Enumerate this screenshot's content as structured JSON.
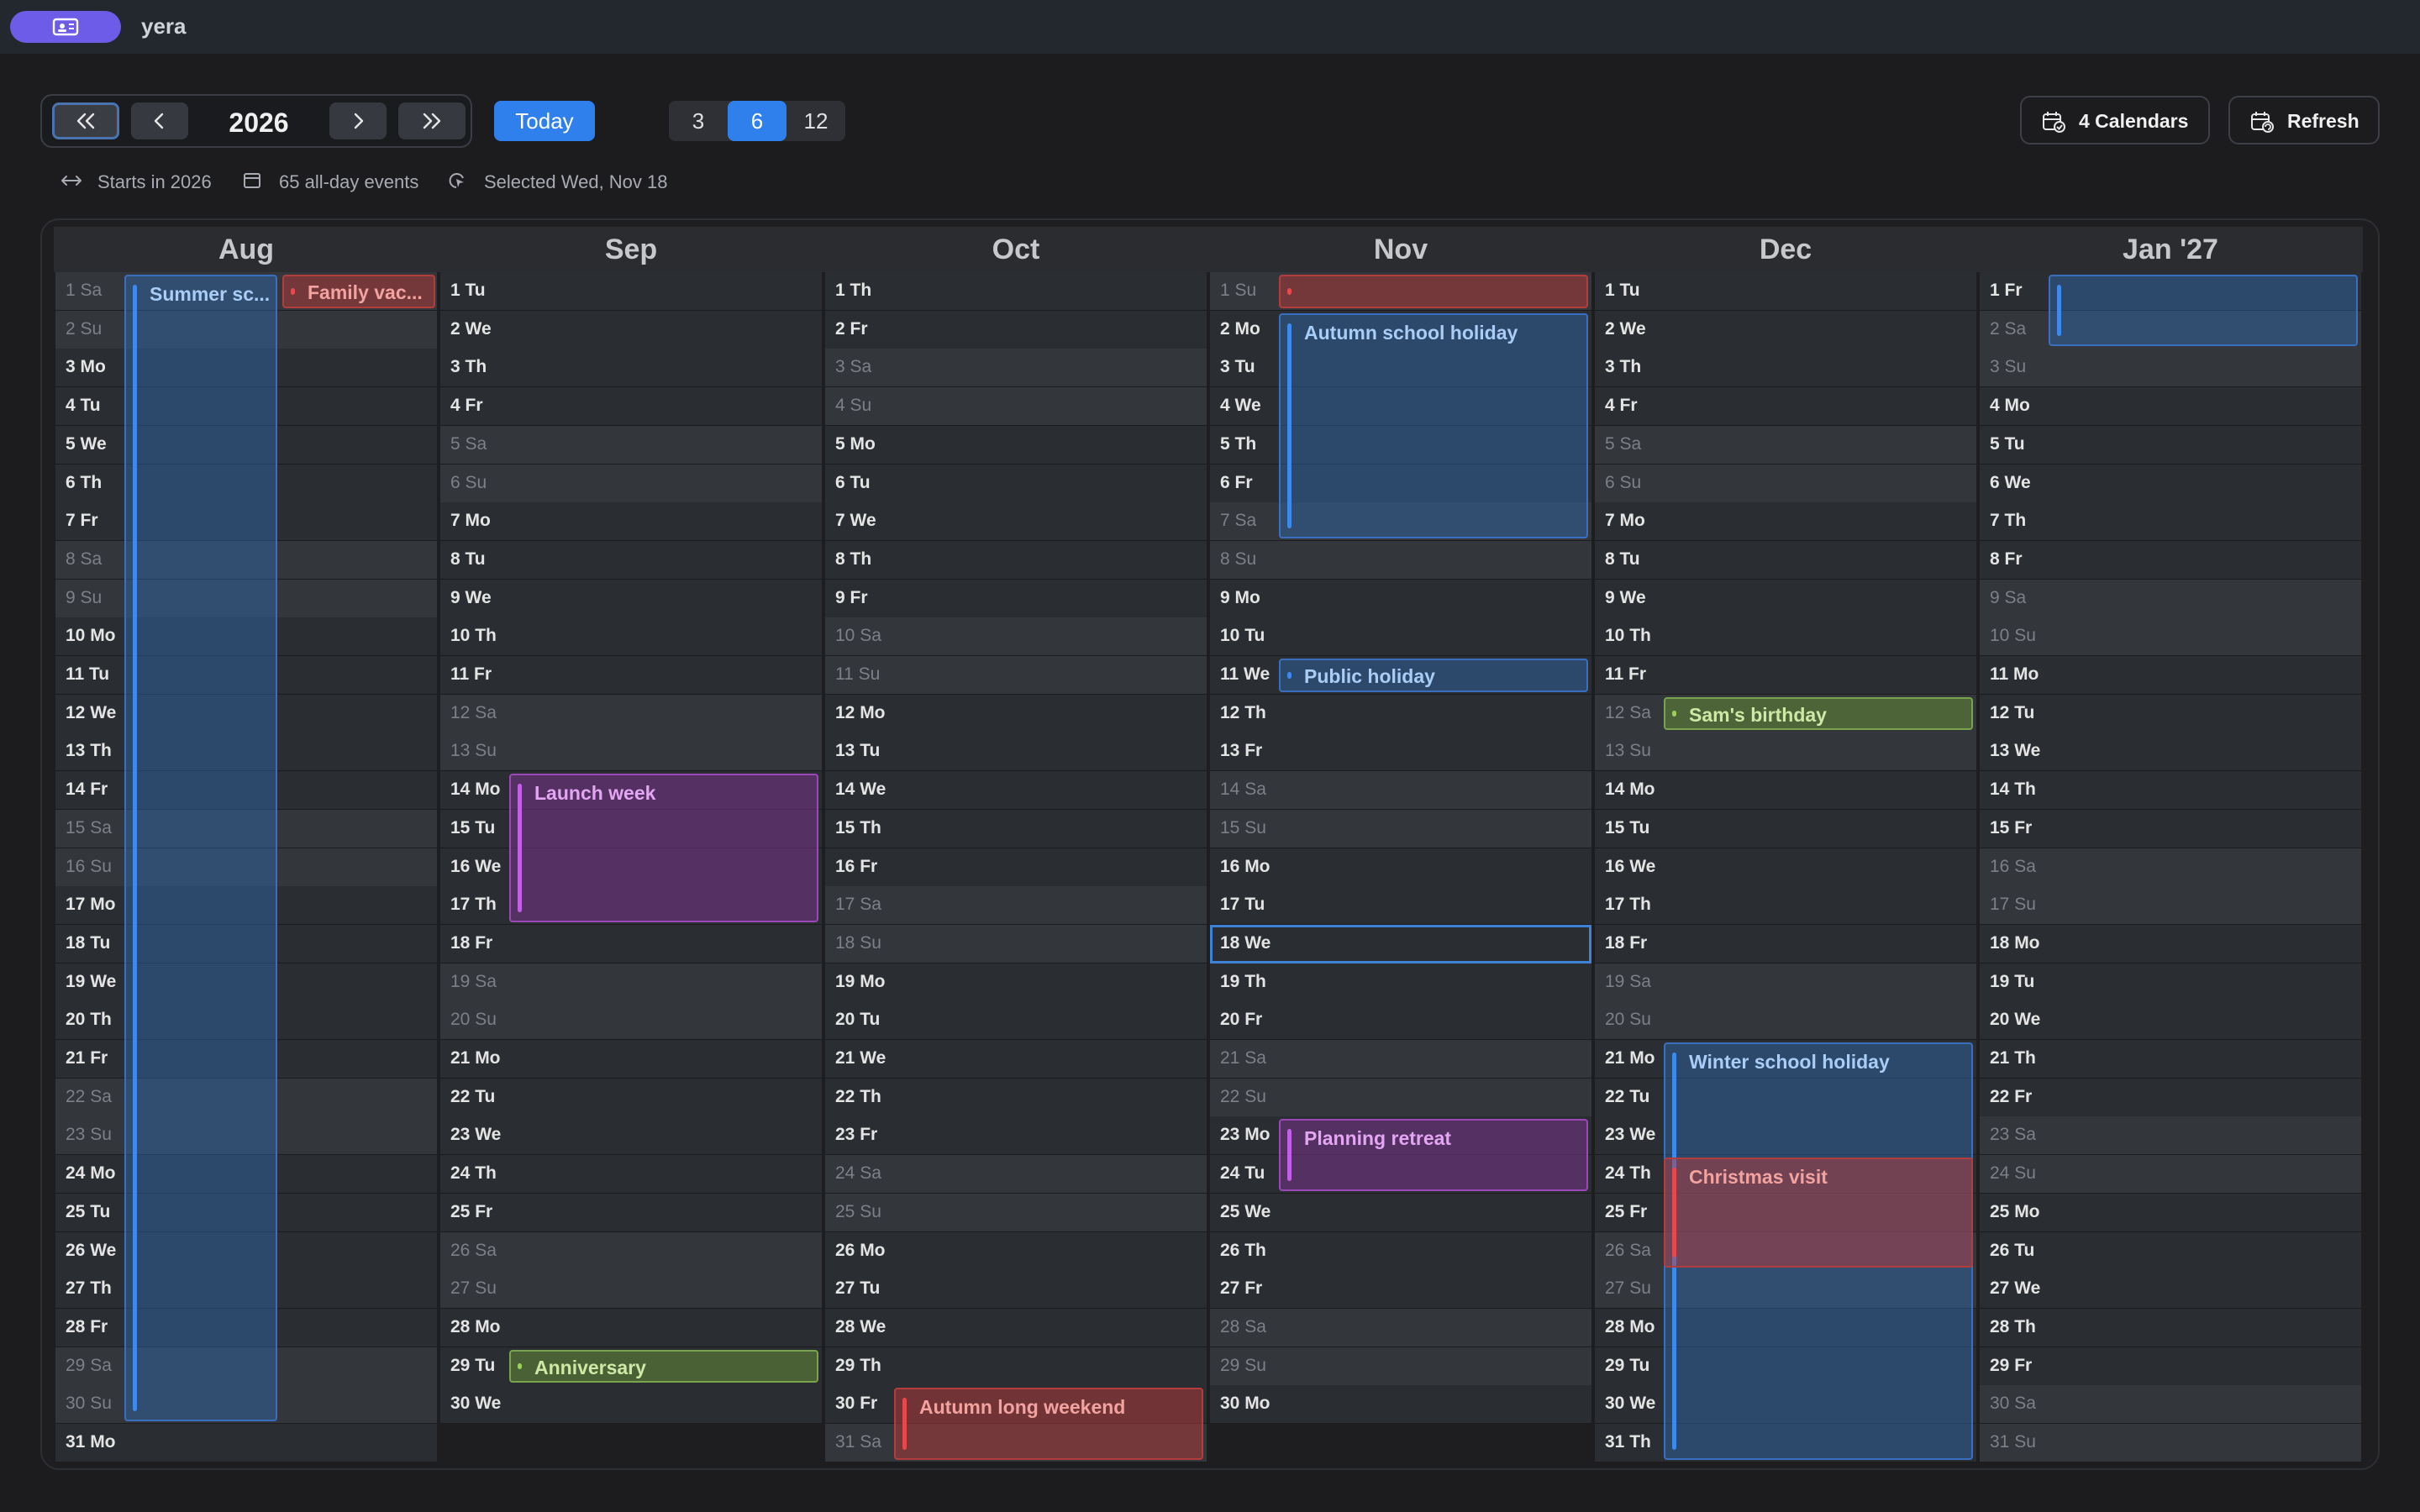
{
  "app": {
    "name": "yera"
  },
  "toolbar": {
    "year": "2026",
    "today_label": "Today",
    "view_options": [
      "3",
      "6",
      "12"
    ],
    "selected_view": "6",
    "calendars_label": "4 Calendars",
    "refresh_label": "Refresh"
  },
  "info": {
    "starts": "Starts in 2026",
    "events": "65 all-day events",
    "selected": "Selected Wed, Nov 18"
  },
  "colors": {
    "accent": "#2f80ed",
    "blue": "#3d8aec",
    "red": "#e5484d",
    "purple": "#c15fe6",
    "green": "#9bd05f"
  },
  "months": [
    {
      "label": "Aug",
      "days": [
        "1 Sa",
        "2 Su",
        "3 Mo",
        "4 Tu",
        "5 We",
        "6 Th",
        "7 Fr",
        "8 Sa",
        "9 Su",
        "10 Mo",
        "11 Tu",
        "12 We",
        "13 Th",
        "14 Fr",
        "15 Sa",
        "16 Su",
        "17 Mo",
        "18 Tu",
        "19 We",
        "20 Th",
        "21 Fr",
        "22 Sa",
        "23 Su",
        "24 Mo",
        "25 Tu",
        "26 We",
        "27 Th",
        "28 Fr",
        "29 Sa",
        "30 Su",
        "31 Mo"
      ]
    },
    {
      "label": "Sep",
      "days": [
        "1 Tu",
        "2 We",
        "3 Th",
        "4 Fr",
        "5 Sa",
        "6 Su",
        "7 Mo",
        "8 Tu",
        "9 We",
        "10 Th",
        "11 Fr",
        "12 Sa",
        "13 Su",
        "14 Mo",
        "15 Tu",
        "16 We",
        "17 Th",
        "18 Fr",
        "19 Sa",
        "20 Su",
        "21 Mo",
        "22 Tu",
        "23 We",
        "24 Th",
        "25 Fr",
        "26 Sa",
        "27 Su",
        "28 Mo",
        "29 Tu",
        "30 We"
      ]
    },
    {
      "label": "Oct",
      "days": [
        "1 Th",
        "2 Fr",
        "3 Sa",
        "4 Su",
        "5 Mo",
        "6 Tu",
        "7 We",
        "8 Th",
        "9 Fr",
        "10 Sa",
        "11 Su",
        "12 Mo",
        "13 Tu",
        "14 We",
        "15 Th",
        "16 Fr",
        "17 Sa",
        "18 Su",
        "19 Mo",
        "20 Tu",
        "21 We",
        "22 Th",
        "23 Fr",
        "24 Sa",
        "25 Su",
        "26 Mo",
        "27 Tu",
        "28 We",
        "29 Th",
        "30 Fr",
        "31 Sa"
      ]
    },
    {
      "label": "Nov",
      "days": [
        "1 Su",
        "2 Mo",
        "3 Tu",
        "4 We",
        "5 Th",
        "6 Fr",
        "7 Sa",
        "8 Su",
        "9 Mo",
        "10 Tu",
        "11 We",
        "12 Th",
        "13 Fr",
        "14 Sa",
        "15 Su",
        "16 Mo",
        "17 Tu",
        "18 We",
        "19 Th",
        "20 Fr",
        "21 Sa",
        "22 Su",
        "23 Mo",
        "24 Tu",
        "25 We",
        "26 Th",
        "27 Fr",
        "28 Sa",
        "29 Su",
        "30 Mo"
      ]
    },
    {
      "label": "Dec",
      "days": [
        "1 Tu",
        "2 We",
        "3 Th",
        "4 Fr",
        "5 Sa",
        "6 Su",
        "7 Mo",
        "8 Tu",
        "9 We",
        "10 Th",
        "11 Fr",
        "12 Sa",
        "13 Su",
        "14 Mo",
        "15 Tu",
        "16 We",
        "17 Th",
        "18 Fr",
        "19 Sa",
        "20 Su",
        "21 Mo",
        "22 Tu",
        "23 We",
        "24 Th",
        "25 Fr",
        "26 Sa",
        "27 Su",
        "28 Mo",
        "29 Tu",
        "30 We",
        "31 Th"
      ]
    },
    {
      "label": "Jan '27",
      "days": [
        "1 Fr",
        "2 Sa",
        "3 Su",
        "4 Mo",
        "5 Tu",
        "6 We",
        "7 Th",
        "8 Fr",
        "9 Sa",
        "10 Su",
        "11 Mo",
        "12 Tu",
        "13 We",
        "14 Th",
        "15 Fr",
        "16 Sa",
        "17 Su",
        "18 Mo",
        "19 Tu",
        "20 We",
        "21 Th",
        "22 Fr",
        "23 Sa",
        "24 Su",
        "25 Mo",
        "26 Tu",
        "27 We",
        "28 Th",
        "29 Fr",
        "30 Sa",
        "31 Su"
      ]
    }
  ],
  "selected_day": {
    "month": 3,
    "day": 18
  },
  "events": [
    {
      "title": "Summer sc...",
      "color": "blue",
      "month": 0,
      "lane": 0,
      "start": 1,
      "end": 30
    },
    {
      "title": "Family vac...",
      "color": "red",
      "month": 0,
      "lane": 1,
      "start": 1,
      "end": 1
    },
    {
      "title": "Launch week",
      "color": "purple",
      "month": 1,
      "lane": 0,
      "start": 14,
      "end": 17
    },
    {
      "title": "Anniversary",
      "color": "green",
      "month": 1,
      "lane": 0,
      "start": 29,
      "end": 29
    },
    {
      "title": "Autumn long weekend",
      "color": "red",
      "month": 2,
      "lane": 0,
      "start": 30,
      "end": 31
    },
    {
      "title": "",
      "color": "red",
      "month": 3,
      "lane": 0,
      "start": 1,
      "end": 1
    },
    {
      "title": "Autumn school holiday",
      "color": "blue",
      "month": 3,
      "lane": 0,
      "start": 2,
      "end": 7
    },
    {
      "title": "Public holiday",
      "color": "blue",
      "month": 3,
      "lane": 0,
      "start": 11,
      "end": 11
    },
    {
      "title": "Planning retreat",
      "color": "purple",
      "month": 3,
      "lane": 0,
      "start": 23,
      "end": 24
    },
    {
      "title": "Sam's birthday",
      "color": "green",
      "month": 4,
      "lane": 0,
      "start": 12,
      "end": 12
    },
    {
      "title": "Winter school holiday",
      "color": "blue",
      "month": 4,
      "lane": 0,
      "start": 21,
      "end": 31
    },
    {
      "title": "Christmas visit",
      "color": "red",
      "month": 4,
      "lane": 0,
      "start": 24,
      "end": 26
    },
    {
      "title": "",
      "color": "blue",
      "month": 5,
      "lane": 0,
      "start": 1,
      "end": 2
    }
  ]
}
